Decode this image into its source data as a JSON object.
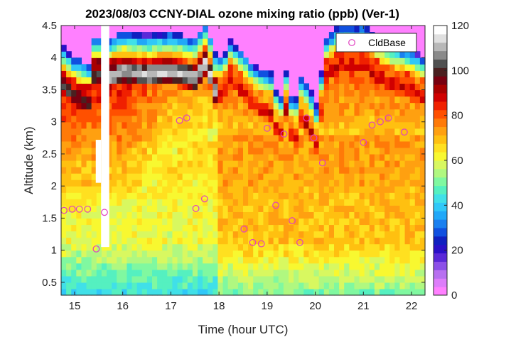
{
  "chart_data": {
    "type": "heatmap",
    "title": "2023/08/03 CCNY-DIAL ozone mixing ratio (ppb) (Ver-1)",
    "xlabel": "Time (hour UTC)",
    "ylabel": "Altitude (km)",
    "xlim": [
      14.72,
      22.28
    ],
    "ylim": [
      0.3,
      4.5
    ],
    "xticks": [
      15,
      16,
      17,
      18,
      19,
      20,
      21,
      22
    ],
    "yticks": [
      0.5,
      1,
      1.5,
      2,
      2.5,
      3,
      3.5,
      4,
      4.5
    ],
    "xtick_labels": [
      "15",
      "16",
      "17",
      "18",
      "19",
      "20",
      "21",
      "22"
    ],
    "ytick_labels": [
      "0.5",
      "1",
      "1.5",
      "2",
      "2.5",
      "3",
      "3.5",
      "4",
      "4.5"
    ],
    "colorbar": {
      "clim": [
        0,
        120
      ],
      "ticks": [
        0,
        20,
        40,
        60,
        80,
        100,
        120
      ],
      "tick_labels": [
        "0",
        "20",
        "40",
        "60",
        "80",
        "100",
        "120"
      ],
      "colors": [
        "#ff80ff",
        "#dd7dfa",
        "#b870f0",
        "#8c50e8",
        "#5a28d8",
        "#2a10c8",
        "#1020c0",
        "#1050e0",
        "#1a80f0",
        "#20a8f8",
        "#30c8f8",
        "#40e0e8",
        "#55f0c0",
        "#80f8a0",
        "#b0f880",
        "#d8f860",
        "#f8f830",
        "#ffe020",
        "#ffc010",
        "#ffa010",
        "#ff7a08",
        "#ff5000",
        "#f02000",
        "#d00000",
        "#a80000",
        "#780010",
        "#4a2020",
        "#505050",
        "#8a8a8a",
        "#b8b8b8",
        "#e0e0e0",
        "#ffffff"
      ]
    },
    "series": [
      {
        "name": "CldBase",
        "marker": "circle",
        "color": "#e040c0",
        "x": [
          14.78,
          14.95,
          15.1,
          15.27,
          15.45,
          15.62,
          17.18,
          17.33,
          17.52,
          17.7,
          18.52,
          18.7,
          18.88,
          19.0,
          19.18,
          19.35,
          19.52,
          19.68,
          19.82,
          19.97,
          20.15,
          21.0,
          21.18,
          21.35,
          21.52,
          21.85
        ],
        "y": [
          1.62,
          1.64,
          1.64,
          1.64,
          1.02,
          1.59,
          3.02,
          3.06,
          1.65,
          1.8,
          1.33,
          1.12,
          1.1,
          2.9,
          1.7,
          2.81,
          1.46,
          1.12,
          3.06,
          2.75,
          2.36,
          2.68,
          2.95,
          3.0,
          3.06,
          2.84
        ]
      }
    ],
    "legend": {
      "position": "top-right",
      "entries": [
        "CldBase"
      ]
    }
  }
}
